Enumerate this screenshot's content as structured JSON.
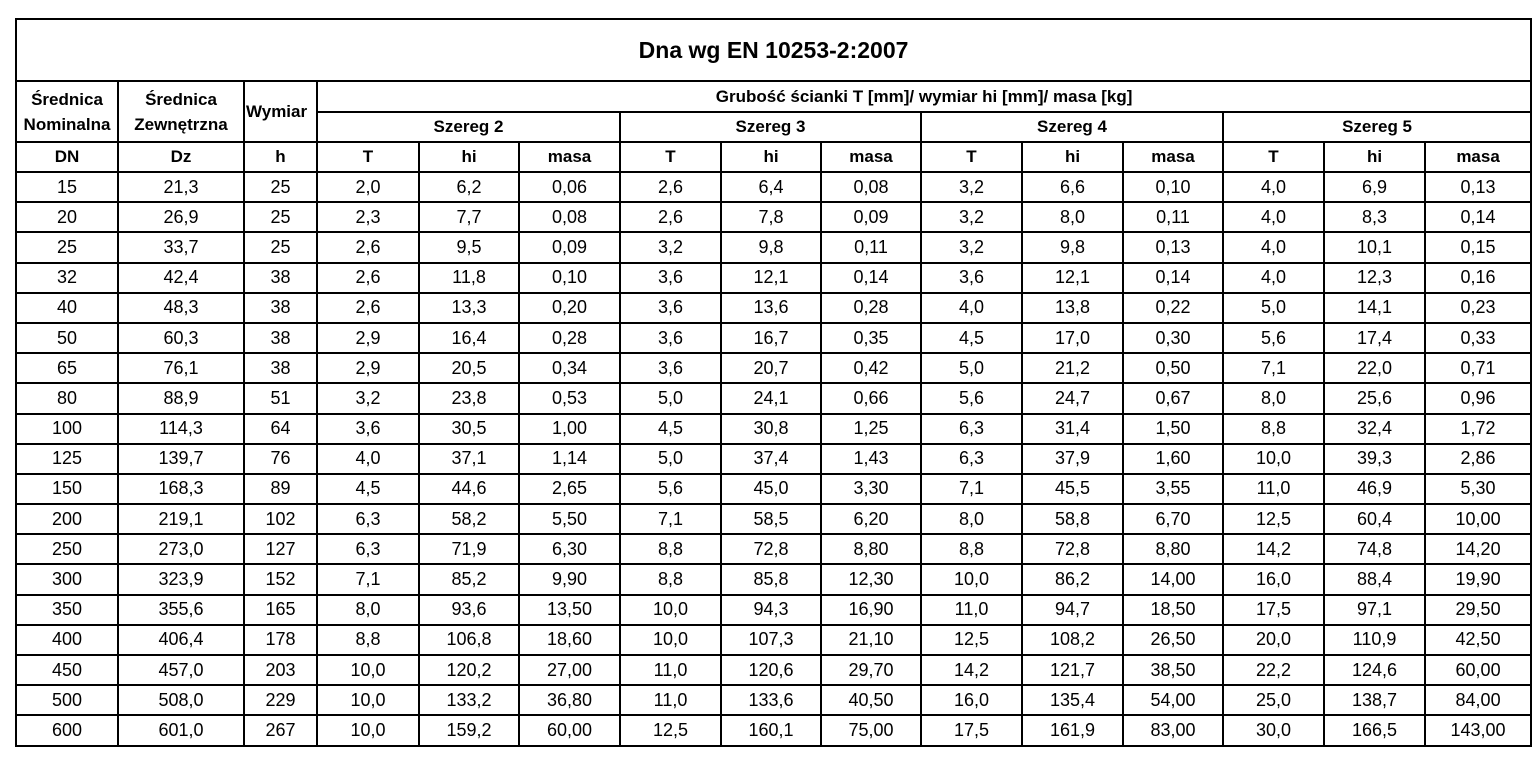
{
  "header": {
    "title": "Dna wg EN 10253-2:2007"
  },
  "table": {
    "lead": [
      [
        "Średnica",
        "Nominalna"
      ],
      [
        "Średnica",
        "Zewnętrzna"
      ],
      [
        "Wymiar"
      ]
    ],
    "group": "Grubość ścianki T [mm]/ wymiar hi [mm]/ masa [kg]",
    "series": [
      "Szereg 2",
      "Szereg 3",
      "Szereg 4",
      "Szereg 5"
    ],
    "columns": [
      "DN",
      "Dz",
      "h",
      "T",
      "hi",
      "masa",
      "T",
      "hi",
      "masa",
      "T",
      "hi",
      "masa",
      "T",
      "hi",
      "masa"
    ],
    "rows": [
      [
        "15",
        "21,3",
        "25",
        "2,0",
        "6,2",
        "0,06",
        "2,6",
        "6,4",
        "0,08",
        "3,2",
        "6,6",
        "0,10",
        "4,0",
        "6,9",
        "0,13"
      ],
      [
        "20",
        "26,9",
        "25",
        "2,3",
        "7,7",
        "0,08",
        "2,6",
        "7,8",
        "0,09",
        "3,2",
        "8,0",
        "0,11",
        "4,0",
        "8,3",
        "0,14"
      ],
      [
        "25",
        "33,7",
        "25",
        "2,6",
        "9,5",
        "0,09",
        "3,2",
        "9,8",
        "0,11",
        "3,2",
        "9,8",
        "0,13",
        "4,0",
        "10,1",
        "0,15"
      ],
      [
        "32",
        "42,4",
        "38",
        "2,6",
        "11,8",
        "0,10",
        "3,6",
        "12,1",
        "0,14",
        "3,6",
        "12,1",
        "0,14",
        "4,0",
        "12,3",
        "0,16"
      ],
      [
        "40",
        "48,3",
        "38",
        "2,6",
        "13,3",
        "0,20",
        "3,6",
        "13,6",
        "0,28",
        "4,0",
        "13,8",
        "0,22",
        "5,0",
        "14,1",
        "0,23"
      ],
      [
        "50",
        "60,3",
        "38",
        "2,9",
        "16,4",
        "0,28",
        "3,6",
        "16,7",
        "0,35",
        "4,5",
        "17,0",
        "0,30",
        "5,6",
        "17,4",
        "0,33"
      ],
      [
        "65",
        "76,1",
        "38",
        "2,9",
        "20,5",
        "0,34",
        "3,6",
        "20,7",
        "0,42",
        "5,0",
        "21,2",
        "0,50",
        "7,1",
        "22,0",
        "0,71"
      ],
      [
        "80",
        "88,9",
        "51",
        "3,2",
        "23,8",
        "0,53",
        "5,0",
        "24,1",
        "0,66",
        "5,6",
        "24,7",
        "0,67",
        "8,0",
        "25,6",
        "0,96"
      ],
      [
        "100",
        "114,3",
        "64",
        "3,6",
        "30,5",
        "1,00",
        "4,5",
        "30,8",
        "1,25",
        "6,3",
        "31,4",
        "1,50",
        "8,8",
        "32,4",
        "1,72"
      ],
      [
        "125",
        "139,7",
        "76",
        "4,0",
        "37,1",
        "1,14",
        "5,0",
        "37,4",
        "1,43",
        "6,3",
        "37,9",
        "1,60",
        "10,0",
        "39,3",
        "2,86"
      ],
      [
        "150",
        "168,3",
        "89",
        "4,5",
        "44,6",
        "2,65",
        "5,6",
        "45,0",
        "3,30",
        "7,1",
        "45,5",
        "3,55",
        "11,0",
        "46,9",
        "5,30"
      ],
      [
        "200",
        "219,1",
        "102",
        "6,3",
        "58,2",
        "5,50",
        "7,1",
        "58,5",
        "6,20",
        "8,0",
        "58,8",
        "6,70",
        "12,5",
        "60,4",
        "10,00"
      ],
      [
        "250",
        "273,0",
        "127",
        "6,3",
        "71,9",
        "6,30",
        "8,8",
        "72,8",
        "8,80",
        "8,8",
        "72,8",
        "8,80",
        "14,2",
        "74,8",
        "14,20"
      ],
      [
        "300",
        "323,9",
        "152",
        "7,1",
        "85,2",
        "9,90",
        "8,8",
        "85,8",
        "12,30",
        "10,0",
        "86,2",
        "14,00",
        "16,0",
        "88,4",
        "19,90"
      ],
      [
        "350",
        "355,6",
        "165",
        "8,0",
        "93,6",
        "13,50",
        "10,0",
        "94,3",
        "16,90",
        "11,0",
        "94,7",
        "18,50",
        "17,5",
        "97,1",
        "29,50"
      ],
      [
        "400",
        "406,4",
        "178",
        "8,8",
        "106,8",
        "18,60",
        "10,0",
        "107,3",
        "21,10",
        "12,5",
        "108,2",
        "26,50",
        "20,0",
        "110,9",
        "42,50"
      ],
      [
        "450",
        "457,0",
        "203",
        "10,0",
        "120,2",
        "27,00",
        "11,0",
        "120,6",
        "29,70",
        "14,2",
        "121,7",
        "38,50",
        "22,2",
        "124,6",
        "60,00"
      ],
      [
        "500",
        "508,0",
        "229",
        "10,0",
        "133,2",
        "36,80",
        "11,0",
        "133,6",
        "40,50",
        "16,0",
        "135,4",
        "54,00",
        "25,0",
        "138,7",
        "84,00"
      ],
      [
        "600",
        "601,0",
        "267",
        "10,0",
        "159,2",
        "60,00",
        "12,5",
        "160,1",
        "75,00",
        "17,5",
        "161,9",
        "83,00",
        "30,0",
        "166,5",
        "143,00"
      ]
    ]
  }
}
